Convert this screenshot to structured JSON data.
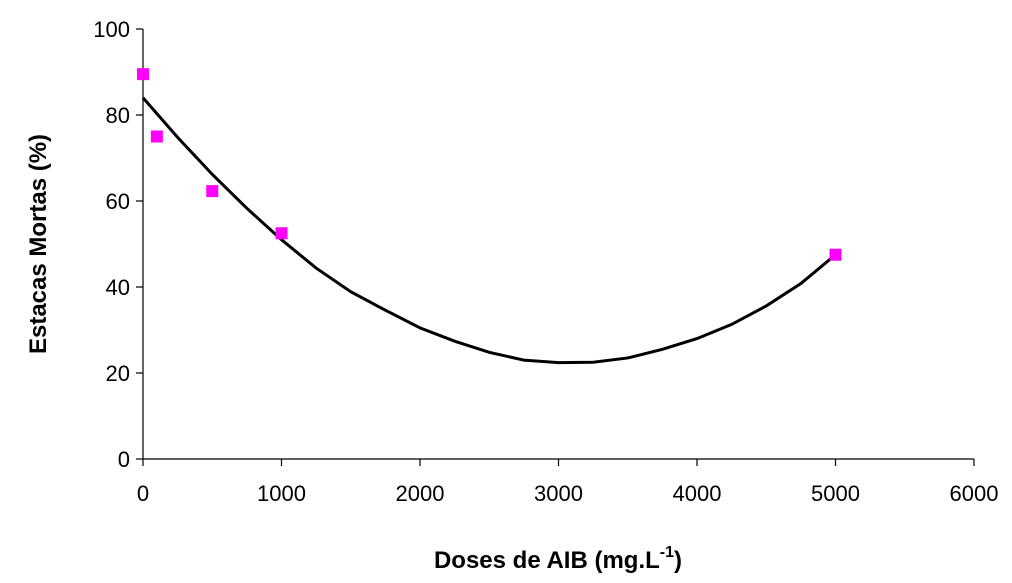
{
  "chart_data": {
    "type": "scatter",
    "xlabel": "Doses de AIB (mg.L",
    "xlabel_superscript": "-1",
    "xlabel_suffix": ")",
    "ylabel": "Estacas Mortas (%)",
    "xlim": [
      0,
      6000
    ],
    "ylim": [
      0,
      100
    ],
    "xticks": [
      0,
      1000,
      2000,
      3000,
      4000,
      5000,
      6000
    ],
    "yticks": [
      0,
      20,
      40,
      60,
      80,
      100
    ],
    "grid": false,
    "legend": "none",
    "colors": {
      "points": "#ff00ff",
      "line": "#000000",
      "axes": "#000000"
    },
    "series": [
      {
        "type": "scatter",
        "marker": "square",
        "x": [
          0,
          100,
          500,
          1000,
          5000
        ],
        "y": [
          89.5,
          75,
          62.3,
          52.5,
          47.5
        ]
      },
      {
        "type": "line",
        "fit": "quadratic",
        "x": [
          0,
          250,
          500,
          750,
          1000,
          1250,
          1500,
          1750,
          2000,
          2250,
          2500,
          2750,
          3000,
          3250,
          3500,
          3750,
          4000,
          4250,
          4500,
          4750,
          5000
        ],
        "y": [
          84,
          74.8,
          66.2,
          58.3,
          51,
          44.4,
          38.9,
          34.6,
          30.5,
          27.4,
          24.8,
          23,
          22.4,
          22.5,
          23.5,
          25.5,
          28,
          31.3,
          35.6,
          40.8,
          47.5
        ]
      }
    ]
  }
}
